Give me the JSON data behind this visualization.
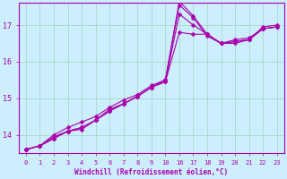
{
  "xlabel": "Windchill (Refroidissement éolien,°C)",
  "bg_color": "#cceeff",
  "grid_color": "#aaddcc",
  "line_color": "#aa00aa",
  "x_ticks_labels": [
    0,
    1,
    2,
    3,
    4,
    5,
    6,
    7,
    8,
    9,
    10,
    16,
    17,
    18,
    19,
    20,
    21,
    22,
    23
  ],
  "x_ticks_pos": [
    0,
    1,
    2,
    3,
    4,
    5,
    6,
    7,
    8,
    9,
    10,
    11,
    12,
    13,
    14,
    15,
    16,
    17,
    18
  ],
  "y_ticks": [
    14,
    15,
    16,
    17
  ],
  "xlim": [
    -0.5,
    18.5
  ],
  "ylim": [
    13.5,
    17.6
  ],
  "series": [
    {
      "xr": [
        0,
        1,
        2,
        3,
        4,
        5,
        6,
        7,
        8,
        9,
        10,
        11,
        12,
        13,
        14,
        15,
        16,
        17,
        18
      ],
      "y": [
        13.6,
        13.7,
        13.9,
        14.1,
        14.15,
        14.4,
        14.7,
        14.85,
        15.05,
        15.3,
        15.5,
        17.55,
        17.2,
        16.7,
        16.5,
        16.5,
        16.6,
        16.95,
        17.0
      ]
    },
    {
      "xr": [
        0,
        1,
        2,
        3,
        4,
        5,
        6,
        7,
        8,
        9,
        10,
        11,
        12,
        13,
        14,
        15,
        16,
        17,
        18
      ],
      "y": [
        13.6,
        13.7,
        14.0,
        14.2,
        14.35,
        14.5,
        14.75,
        14.95,
        15.1,
        15.35,
        15.5,
        17.65,
        17.25,
        16.75,
        16.5,
        16.6,
        16.65,
        16.9,
        16.95
      ]
    },
    {
      "xr": [
        0,
        1,
        2,
        3,
        4,
        5,
        6,
        7,
        8,
        9,
        10,
        11,
        12,
        13,
        14,
        15,
        16,
        17,
        18
      ],
      "y": [
        13.6,
        13.7,
        13.9,
        14.1,
        14.2,
        14.4,
        14.65,
        14.85,
        15.05,
        15.3,
        15.45,
        17.3,
        17.0,
        16.75,
        16.5,
        16.55,
        16.6,
        16.9,
        16.95
      ]
    },
    {
      "xr": [
        0,
        1,
        2,
        3,
        4,
        5,
        6,
        7,
        8,
        9,
        10,
        11,
        12,
        13,
        14,
        15,
        16,
        17,
        18
      ],
      "y": [
        13.6,
        13.7,
        13.95,
        14.1,
        14.2,
        14.4,
        14.65,
        14.85,
        15.05,
        15.3,
        15.45,
        16.8,
        16.75,
        16.75,
        16.5,
        16.55,
        16.6,
        16.9,
        16.95
      ]
    }
  ]
}
